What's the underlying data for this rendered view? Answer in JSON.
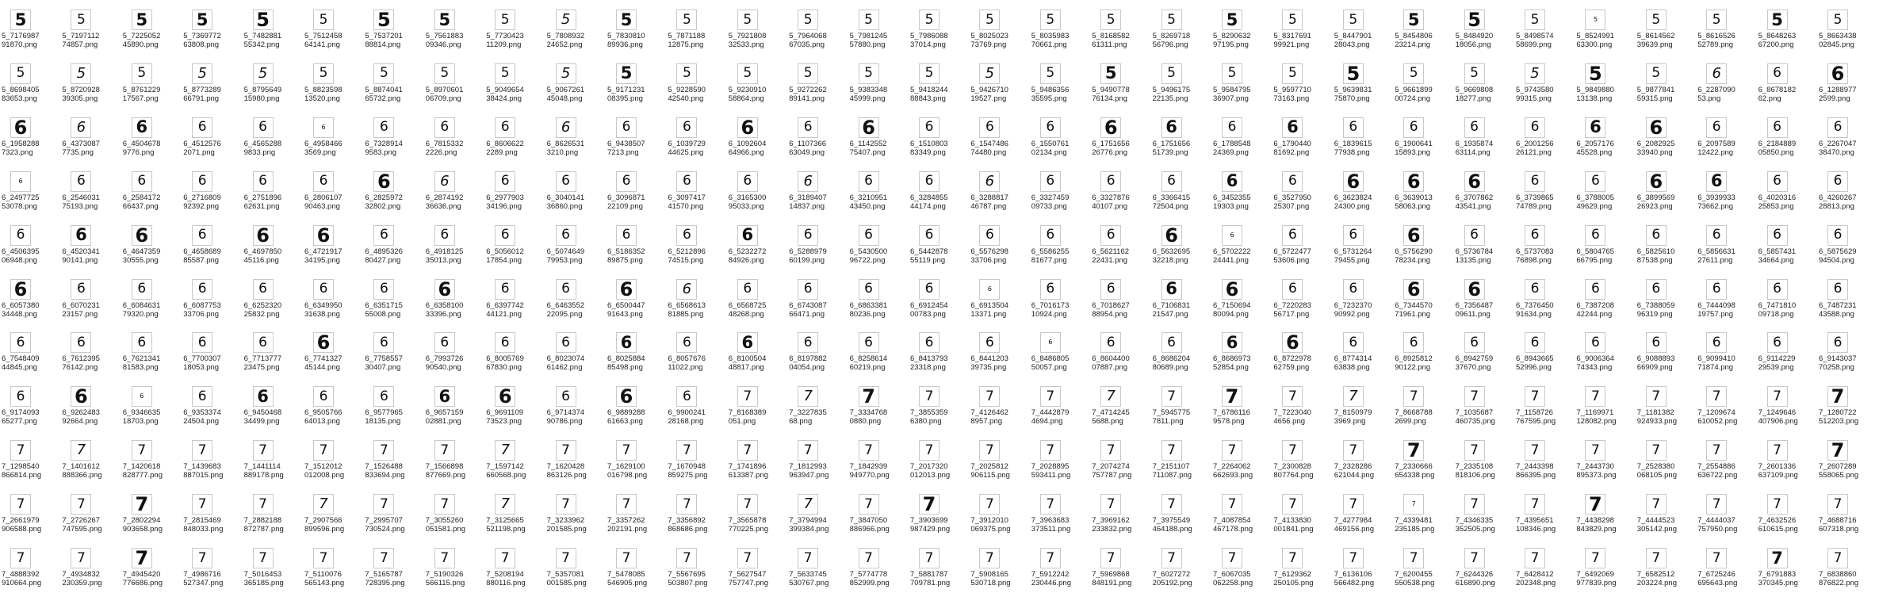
{
  "window": {
    "view": "Large icons - image thumbnails"
  },
  "rows": [
    [
      "5_717698791870.png",
      "5_719711274857.png",
      "5_722505245890.png",
      "5_736977263808.png",
      "5_748288155342.png",
      "5_751245864141.png",
      "5_753720188814.png",
      "5_756188309346.png",
      "5_773042311209.png",
      "5_780893224652.png",
      "5_783081089936.png",
      "5_787118812875.png",
      "5_792180832533.png",
      "5_796406867035.png",
      "5_798124557880.png",
      "5_798608837014.png",
      "5_802502373769.png",
      "5_803598370661.png",
      "5_816858261311.png",
      "5_826971856796.png",
      "5_829063297195.png",
      "5_831769199921.png",
      "5_844790128043.png",
      "5_845480623214.png",
      "5_848492018056.png",
      "5_849857458699.png",
      "5_852499163300.png",
      "5_861456239639.png",
      "5_861652652789.png",
      "5_864826367200.png",
      "5_866343802845.png"
    ],
    [
      "5_869840583653.png",
      "5_872092839305.png",
      "5_876122917567.png",
      "5_877328966791.png",
      "5_879564915980.png",
      "5_882359813520.png",
      "5_887404165732.png",
      "5_897060106709.png",
      "5_904965438424.png",
      "5_906726145048.png",
      "5_917123108395.png",
      "5_922859042540.png",
      "5_923091058864.png",
      "5_927226289141.png",
      "5_938334845999.png",
      "5_941824488843.png",
      "5_942671019527.png",
      "5_948635635595.png",
      "5_949077876134.png",
      "5_949617522135.png",
      "5_958479536907.png",
      "5_959771073163.png",
      "5_963983175870.png",
      "5_966189900724.png",
      "5_966980818277.png",
      "5_974358099315.png",
      "5_984988013138.png",
      "5_987784159315.png",
      "6_228709053.png",
      "6_867818262.png",
      "6_12889772599.png"
    ],
    [
      "6_19582887323.png",
      "6_43730877735.png",
      "6_45046789776.png",
      "6_45125762071.png",
      "6_45652889833.png",
      "6_49584663569.png",
      "6_73289149583.png",
      "6_78153322226.png",
      "6_86066222289.png",
      "6_86265313210.png",
      "6_94385077213.png",
      "6_103972944625.png",
      "6_109260464966.png",
      "6_110736663049.png",
      "6_114255275407.png",
      "6_151080383349.png",
      "6_154748674480.png",
      "6_155076102134.png",
      "6_175165626776.png",
      "6_175165651739.png",
      "6_178854824369.png",
      "6_179044081692.png",
      "6_183961577938.png",
      "6_190064115893.png",
      "6_193587463114.png",
      "6_200125626121.png",
      "6_205717645528.png",
      "6_208292533940.png",
      "6_209758912422.png",
      "6_218488905850.png",
      "6_226704738470.png"
    ],
    [
      "6_249772553078.png",
      "6_254603175193.png",
      "6_258417266437.png",
      "6_271680992392.png",
      "6_275189662631.png",
      "6_280610790463.png",
      "6_282597232802.png",
      "6_287419236636.png",
      "6_297790334196.png",
      "6_304014136860.png",
      "6_309687122109.png",
      "6_309741741570.png",
      "6_316530095033.png",
      "6_318940714837.png",
      "6_321095143450.png",
      "6_328485544174.png",
      "6_328881746787.png",
      "6_332745909733.png",
      "6_332787640107.png",
      "6_336641572504.png",
      "6_345235519303.png",
      "6_352795025307.png",
      "6_362382424300.png",
      "6_363901358063.png",
      "6_370786243541.png",
      "6_373986574789.png",
      "6_378800549629.png",
      "6_389956926923.png",
      "6_393993373662.png",
      "6_402031625853.png",
      "6_426026728813.png"
    ],
    [
      "6_450639506948.png",
      "6_452034190141.png",
      "6_464735930555.png",
      "6_465868985587.png",
      "6_469785045116.png",
      "6_472191734195.png",
      "6_489532680427.png",
      "6_491812535013.png",
      "6_505601217854.png",
      "6_507464979953.png",
      "6_518635289875.png",
      "6_521289674515.png",
      "6_523227284926.png",
      "6_528897960199.png",
      "6_543050096722.png",
      "6_544287855119.png",
      "6_557629833706.png",
      "6_558625581677.png",
      "6_562116222431.png",
      "6_563269532218.png",
      "6_570222224441.png",
      "6_572247753606.png",
      "6_573126479455.png",
      "6_575629078234.png",
      "6_573678413135.png",
      "6_573708376898.png",
      "6_580476566795.png",
      "6_582561087538.png",
      "6_585663127611.png",
      "6_585743134664.png",
      "6_587562994504.png"
    ],
    [
      "6_605738034448.png",
      "6_607023123157.png",
      "6_608463179320.png",
      "6_608775333706.png",
      "6_625232025832.png",
      "6_634995031638.png",
      "6_635171555008.png",
      "6_635810033396.png",
      "6_639774244121.png",
      "6_646355222095.png",
      "6_650044791643.png",
      "6_656861381885.png",
      "6_656872548268.png",
      "6_674308766471.png",
      "6_686338180236.png",
      "6_691245400783.png",
      "6_691350413371.png",
      "6_701617310924.png",
      "6_701862788954.png",
      "6_710683121547.png",
      "6_715069480094.png",
      "6_722028356717.png",
      "6_723237090992.png",
      "6_734457071961.png",
      "6_735648709611.png",
      "6_737645091634.png",
      "6_738720842244.png",
      "6_738805996319.png",
      "6_744409819757.png",
      "6_747181009718.png",
      "6_748723143588.png"
    ],
    [
      "6_754840944845.png",
      "6_761239576142.png",
      "6_762134181583.png",
      "6_770030718053.png",
      "6_771377723475.png",
      "6_774132745144.png",
      "6_775855730407.png",
      "6_799372690540.png",
      "6_800576967830.png",
      "6_802307461462.png",
      "6_802588485498.png",
      "6_805767611022.png",
      "6_810050448817.png",
      "6_819788204054.png",
      "6_825861460219.png",
      "6_841379323318.png",
      "6_844120339735.png",
      "6_848680550057.png",
      "6_860440007887.png",
      "6_868620480689.png",
      "6_868697352854.png",
      "6_872297862759.png",
      "6_877431463838.png",
      "6_892581290122.png",
      "6_894275937670.png",
      "6_894366552996.png",
      "6_900636474343.png",
      "6_908889366909.png",
      "6_909941071874.png",
      "6_911422929539.png",
      "6_914303770258.png"
    ],
    [
      "6_917409365277.png",
      "6_926248392664.png",
      "6_934663518703.png",
      "6_935337424504.png",
      "6_945046834499.png",
      "6_950576664013.png",
      "6_957796518135.png",
      "6_965715902881.png",
      "6_969110973523.png",
      "6_971437490786.png",
      "6_988928861663.png",
      "6_990024128168.png",
      "7_8168389051.png",
      "7_322783568.png",
      "7_33347680880.png",
      "7_38553596380.png",
      "7_41264628957.png",
      "7_44428794694.png",
      "7_47142455688.png",
      "7_59457757811.png",
      "7_67861169578.png",
      "7_72230404656.png",
      "7_81509793969.png",
      "7_86687882699.png",
      "7_1035687460735.png",
      "7_1158726767595.png",
      "7_1169971128082.png",
      "7_1181382924933.png",
      "7_1209674610052.png",
      "7_1249646407906.png",
      "7_1280722512203.png"
    ],
    [
      "7_1298540866814.png",
      "7_1401612888366.png",
      "7_1420618828777.png",
      "7_1439683887015.png",
      "7_1441114889178.png",
      "7_1512012012008.png",
      "7_1526488833694.png",
      "7_1566898877669.png",
      "7_1597142660568.png",
      "7_1620428863126.png",
      "7_1629100016798.png",
      "7_1670948859275.png",
      "7_1741896613387.png",
      "7_1812993963947.png",
      "7_1842939949770.png",
      "7_2017320012013.png",
      "7_2025812906115.png",
      "7_2028895593411.png",
      "7_2074274757787.png",
      "7_2151107711087.png",
      "7_2264062662693.png",
      "7_2300828807764.png",
      "7_2328286621044.png",
      "7_2330666654338.png",
      "7_2335108818106.png",
      "7_2443398866395.png",
      "7_2443730895373.png",
      "7_2528380068105.png",
      "7_2554886636722.png",
      "7_2601336637109.png",
      "7_2607289558065.png"
    ],
    [
      "7_2661979906588.png",
      "7_2726267747595.png",
      "7_2802294903658.png",
      "7_2815469848033.png",
      "7_2882188872787.png",
      "7_2907566899596.png",
      "7_2995707730524.png",
      "7_3055260051581.png",
      "7_3125665521198.png",
      "7_3233962201585.png",
      "7_3357262202191.png",
      "7_3356892868686.png",
      "7_3565878770225.png",
      "7_3794994399384.png",
      "7_3847050886966.png",
      "7_3903699987429.png",
      "7_3912010069375.png",
      "7_3963683373511.png",
      "7_3969162233832.png",
      "7_3975549464188.png",
      "7_4087854467178.png",
      "7_4133830001841.png",
      "7_4277984469156.png",
      "7_4339481235185.png",
      "7_4346335352505.png",
      "7_4395651108346.png",
      "7_4438298843829.png",
      "7_4444523305142.png",
      "7_4444037757950.png",
      "7_4632526610615.png",
      "7_4688716607318.png"
    ],
    [
      "7_4888392910664.png",
      "7_4934832230359.png",
      "7_4945420776686.png",
      "7_4986716527347.png",
      "7_5016453365185.png",
      "7_5110076565143.png",
      "7_5165787728395.png",
      "7_5190326566115.png",
      "7_5208194880116.png",
      "7_5357081001585.png",
      "7_5478085546905.png",
      "7_5567695503807.png",
      "7_5627547757747.png",
      "7_5633745530767.png",
      "7_5774778852999.png",
      "7_5881787709781.png",
      "7_5908165530718.png",
      "7_5912242230446.png",
      "7_5969868848191.png",
      "7_6027272205192.png",
      "7_6067035062258.png",
      "7_6129362250105.png",
      "7_6136106566482.png",
      "7_6200455550538.png",
      "7_6244326616890.png",
      "7_6428412202348.png",
      "7_6492069977839.png",
      "7_6582512203224.png",
      "7_6725246695643.png",
      "7_6791883370345.png",
      "7_6838860876822.png"
    ]
  ],
  "styles": [
    [
      "b",
      "t",
      "b",
      "b",
      "k",
      "t",
      "k",
      "b",
      "t",
      "i",
      "b",
      "t",
      "t",
      "t",
      "t",
      "t",
      "t",
      "t",
      "t",
      "t",
      "b",
      "t",
      "t",
      "b",
      "k",
      "t",
      "c",
      "t",
      "t",
      "b",
      "t"
    ],
    [
      "t",
      "i",
      "t",
      "i",
      "i",
      "t",
      "t",
      "t",
      "t",
      "i",
      "b",
      "t",
      "t",
      "t",
      "t",
      "t",
      "i",
      "t",
      "b",
      "t",
      "t",
      "t",
      "k",
      "t",
      "t",
      "i",
      "k",
      "t",
      "i",
      "t",
      "k"
    ],
    [
      "k",
      "i",
      "b",
      "t",
      "t",
      "c",
      "t",
      "t",
      "t",
      "i",
      "t",
      "t",
      "k",
      "t",
      "k",
      "t",
      "t",
      "t",
      "k",
      "b",
      "t",
      "b",
      "t",
      "t",
      "t",
      "t",
      "b",
      "k",
      "t",
      "t",
      "t"
    ],
    [
      "c",
      "t",
      "t",
      "t",
      "t",
      "t",
      "k",
      "i",
      "t",
      "t",
      "t",
      "t",
      "t",
      "i",
      "t",
      "t",
      "i",
      "t",
      "t",
      "t",
      "b",
      "t",
      "k",
      "k",
      "k",
      "t",
      "t",
      "k",
      "b",
      "t",
      "t"
    ],
    [
      "t",
      "b",
      "k",
      "t",
      "k",
      "k",
      "t",
      "t",
      "t",
      "t",
      "t",
      "t",
      "b",
      "t",
      "t",
      "t",
      "t",
      "t",
      "t",
      "k",
      "c",
      "t",
      "t",
      "k",
      "t",
      "t",
      "t",
      "t",
      "t",
      "t",
      "t"
    ],
    [
      "k",
      "t",
      "t",
      "t",
      "t",
      "t",
      "t",
      "k",
      "t",
      "t",
      "k",
      "i",
      "t",
      "t",
      "t",
      "t",
      "c",
      "t",
      "t",
      "b",
      "k",
      "t",
      "t",
      "k",
      "k",
      "t",
      "t",
      "t",
      "t",
      "t",
      "t"
    ],
    [
      "t",
      "t",
      "t",
      "t",
      "t",
      "k",
      "t",
      "t",
      "t",
      "t",
      "b",
      "t",
      "b",
      "t",
      "t",
      "t",
      "t",
      "c",
      "t",
      "t",
      "b",
      "k",
      "t",
      "t",
      "t",
      "t",
      "t",
      "t",
      "t",
      "t",
      "t"
    ],
    [
      "t",
      "k",
      "c",
      "t",
      "b",
      "t",
      "t",
      "b",
      "k",
      "t",
      "k",
      "t",
      "t",
      "i",
      "k",
      "t",
      "t",
      "t",
      "i",
      "t",
      "k",
      "t",
      "i",
      "t",
      "t",
      "t",
      "t",
      "t",
      "t",
      "t",
      "k"
    ],
    [
      "t",
      "i",
      "t",
      "t",
      "t",
      "t",
      "t",
      "t",
      "i",
      "t",
      "t",
      "t",
      "t",
      "t",
      "t",
      "t",
      "t",
      "t",
      "t",
      "t",
      "t",
      "t",
      "t",
      "k",
      "t",
      "t",
      "t",
      "t",
      "t",
      "t",
      "k"
    ],
    [
      "t",
      "t",
      "k",
      "t",
      "t",
      "i",
      "t",
      "t",
      "i",
      "t",
      "t",
      "t",
      "t",
      "i",
      "t",
      "k",
      "t",
      "t",
      "t",
      "t",
      "t",
      "t",
      "t",
      "c",
      "t",
      "t",
      "k",
      "t",
      "t",
      "t",
      "t"
    ],
    [
      "t",
      "t",
      "k",
      "t",
      "t",
      "t",
      "t",
      "t",
      "t",
      "t",
      "t",
      "t",
      "t",
      "t",
      "t",
      "t",
      "t",
      "t",
      "t",
      "t",
      "t",
      "t",
      "t",
      "t",
      "t",
      "t",
      "t",
      "t",
      "t",
      "b",
      "t"
    ]
  ]
}
